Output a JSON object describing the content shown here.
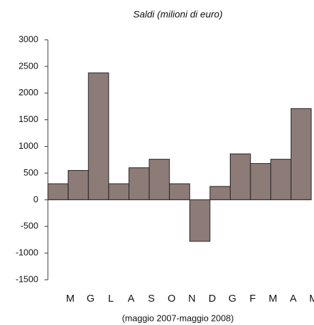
{
  "chart_data": {
    "type": "bar",
    "title": "Saldi (milioni di euro)",
    "x_label": "(maggio 2007-maggio 2008)",
    "categories": [
      "M",
      "G",
      "L",
      "A",
      "S",
      "O",
      "N",
      "D",
      "G",
      "F",
      "M",
      "A",
      "M"
    ],
    "values": [
      300,
      550,
      2380,
      300,
      600,
      760,
      300,
      -780,
      250,
      860,
      680,
      760,
      1710
    ],
    "color": "#8c7b76",
    "ylim": [
      -1500,
      3000
    ],
    "yticks": [
      -1500,
      -1000,
      -500,
      0,
      500,
      1000,
      1500,
      2000,
      2500,
      3000
    ],
    "grid": false
  }
}
